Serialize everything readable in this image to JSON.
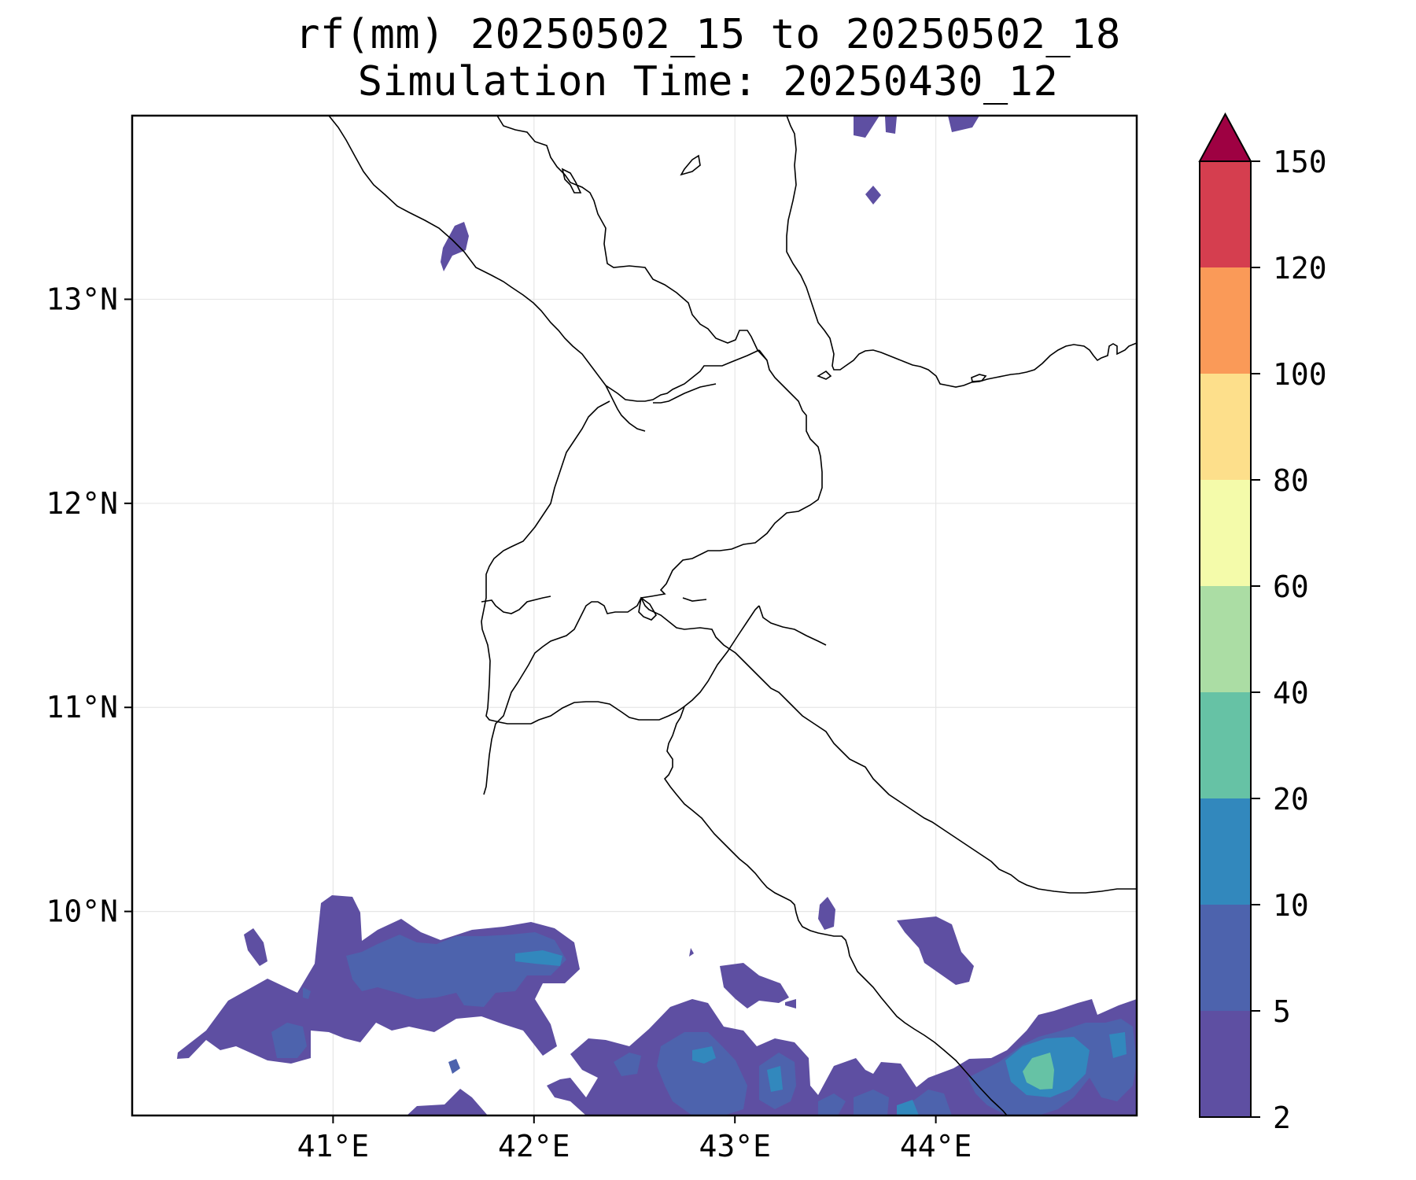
{
  "title": {
    "line1": "rf(mm) 20250502_15 to 20250502_18",
    "line2": "Simulation Time: 20250430_12"
  },
  "map": {
    "lon_range": [
      40.0,
      45.0
    ],
    "lat_range": [
      9.0,
      13.9
    ],
    "lon_ticks": [
      41,
      42,
      43,
      44
    ],
    "lat_ticks": [
      10,
      11,
      12,
      13
    ],
    "lon_tick_labels": [
      "41°E",
      "42°E",
      "43°E",
      "44°E"
    ],
    "lat_tick_labels": [
      "10°N",
      "11°N",
      "12°N",
      "13°N"
    ],
    "grid": true
  },
  "colorbar": {
    "levels": [
      2,
      5,
      10,
      20,
      40,
      60,
      80,
      100,
      120,
      150
    ],
    "labels": [
      "2",
      "5",
      "10",
      "20",
      "40",
      "60",
      "80",
      "100",
      "120",
      "150"
    ],
    "colors": [
      "#5e4fa2",
      "#4d63ad",
      "#3288bd",
      "#66c2a5",
      "#abdda4",
      "#f4fbaa",
      "#fddf8b",
      "#fa9a58",
      "#d53e4f"
    ],
    "extend_color": "#9e0142",
    "extend": "max"
  }
}
